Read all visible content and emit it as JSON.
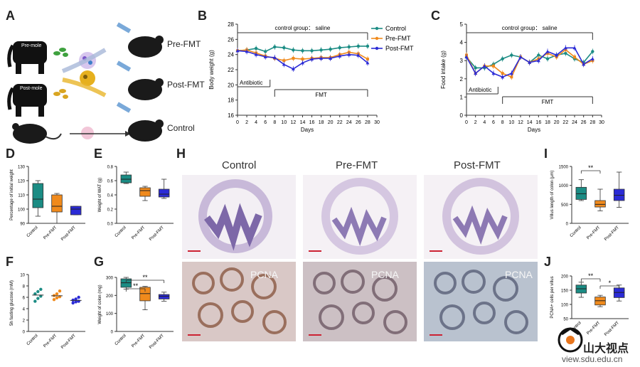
{
  "panels": {
    "A": {
      "letter": "A",
      "labels": {
        "pre_fmt": "Pre-FMT",
        "post_fmt": "Post-FMT",
        "control": "Control"
      },
      "elephant_tags": [
        "Pre-mole",
        "Post-mole"
      ]
    },
    "B": {
      "letter": "B",
      "title": "control group： saline",
      "ylabel": "Body weight (g)",
      "xlabel": "Days",
      "antibiotic": "Antibiotic",
      "fmt": "FMT",
      "yticks": [
        "16",
        "18",
        "20",
        "22",
        "24",
        "26",
        "28"
      ],
      "xticks": [
        "0",
        "2",
        "4",
        "6",
        "8",
        "10",
        "12",
        "14",
        "16",
        "18",
        "20",
        "22",
        "24",
        "26",
        "28",
        "30"
      ],
      "legend": [
        "Control",
        "Pre-FMT",
        "Post-FMT"
      ]
    },
    "C": {
      "letter": "C",
      "title": "control group： saline",
      "ylabel": "Food intake (g)",
      "xlabel": "Days",
      "antibiotic": "Antibiotic",
      "fmt": "FMT",
      "yticks": [
        "0",
        "1",
        "2",
        "3",
        "4",
        "5"
      ],
      "xticks": [
        "0",
        "2",
        "4",
        "6",
        "8",
        "10",
        "12",
        "14",
        "16",
        "18",
        "20",
        "22",
        "24",
        "26",
        "28",
        "30"
      ]
    },
    "D": {
      "letter": "D",
      "ylabel": "Percentage of initial weight",
      "yticks": [
        "90",
        "100",
        "110",
        "120",
        "130"
      ],
      "cats": [
        "Control",
        "Pre-FMT",
        "Post-FMT"
      ]
    },
    "E": {
      "letter": "E",
      "ylabel": "Weight of WAT (g)",
      "yticks": [
        "0.0",
        "0.2",
        "0.4",
        "0.6",
        "0.8"
      ],
      "cats": [
        "Control",
        "Pre-FMT",
        "Post-FMT"
      ]
    },
    "F": {
      "letter": "F",
      "ylabel": "5h fasting glucose (mM)",
      "yticks": [
        "0",
        "2",
        "4",
        "6",
        "8",
        "10"
      ],
      "cats": [
        "Control",
        "Pre-FMT",
        "Post-FMT"
      ]
    },
    "G": {
      "letter": "G",
      "ylabel": "Weight of colon (mg)",
      "yticks": [
        "0",
        "100",
        "200",
        "300"
      ],
      "cats": [
        "Control",
        "Pre-FMT",
        "Post-FMT"
      ],
      "sig": [
        "**",
        "**"
      ]
    },
    "H": {
      "letter": "H",
      "titles": [
        "Control",
        "Pre-FMT",
        "Post-FMT"
      ],
      "stain": "PCNA"
    },
    "I": {
      "letter": "I",
      "ylabel": "Villus length of colon (μm)",
      "yticks": [
        "0",
        "500",
        "1000",
        "1500"
      ],
      "cats": [
        "Control",
        "Pre-FMT",
        "Post-FMT"
      ],
      "sig": [
        "**"
      ]
    },
    "J": {
      "letter": "J",
      "ylabel": "PCNA+ cells per villus",
      "yticks": [
        "50",
        "100",
        "150",
        "200"
      ],
      "cats": [
        "Control",
        "Pre-FMT",
        "Post-FMT"
      ],
      "sig": [
        "**",
        "*"
      ]
    }
  },
  "watermark": {
    "name": "山大视点",
    "url": "view.sdu.edu.cn"
  },
  "colors": {
    "control": "#1b8c84",
    "pre": "#f08a1c",
    "post": "#2b2bd6"
  },
  "chart_data": [
    {
      "type": "line",
      "panel": "B",
      "x": [
        0,
        2,
        4,
        6,
        8,
        10,
        12,
        14,
        16,
        18,
        20,
        22,
        24,
        26,
        28
      ],
      "series": [
        {
          "name": "Control",
          "values": [
            24.5,
            24.6,
            24.8,
            24.4,
            25.0,
            24.9,
            24.6,
            24.5,
            24.5,
            24.6,
            24.7,
            24.9,
            25.0,
            25.1,
            25.1
          ]
        },
        {
          "name": "Pre-FMT",
          "values": [
            24.5,
            24.6,
            24.2,
            23.8,
            23.5,
            23.2,
            23.5,
            23.4,
            23.5,
            23.6,
            23.6,
            24.0,
            24.3,
            24.1,
            23.4
          ]
        },
        {
          "name": "Post-FMT",
          "values": [
            24.5,
            24.4,
            24.0,
            23.7,
            23.6,
            22.7,
            22.1,
            22.9,
            23.4,
            23.5,
            23.5,
            23.8,
            24.0,
            23.9,
            22.9
          ]
        }
      ],
      "ylim": [
        16,
        28
      ],
      "xlim": [
        0,
        30
      ]
    },
    {
      "type": "line",
      "panel": "C",
      "x": [
        0,
        2,
        4,
        6,
        8,
        10,
        12,
        14,
        16,
        18,
        20,
        22,
        24,
        26,
        28
      ],
      "series": [
        {
          "name": "Control",
          "values": [
            3.2,
            2.6,
            2.6,
            2.8,
            3.1,
            3.3,
            3.2,
            2.9,
            3.3,
            3.1,
            3.3,
            3.4,
            3.1,
            2.9,
            3.5
          ]
        },
        {
          "name": "Pre-FMT",
          "values": [
            3.3,
            2.3,
            2.7,
            2.7,
            2.3,
            2.1,
            3.2,
            2.9,
            3.1,
            3.4,
            3.2,
            3.6,
            3.2,
            2.8,
            3.0
          ]
        },
        {
          "name": "Post-FMT",
          "values": [
            3.2,
            2.3,
            2.7,
            2.3,
            2.1,
            2.3,
            3.2,
            2.9,
            3.0,
            3.5,
            3.3,
            3.7,
            3.7,
            2.8,
            3.1
          ]
        }
      ],
      "ylim": [
        0,
        5
      ],
      "xlim": [
        0,
        30
      ]
    },
    {
      "type": "box",
      "panel": "D",
      "categories": [
        "Control",
        "Pre-FMT",
        "Post-FMT"
      ],
      "boxes": [
        {
          "min": 95,
          "q1": 101,
          "median": 107,
          "q3": 118,
          "max": 120
        },
        {
          "min": 90,
          "q1": 98,
          "median": 102,
          "q3": 110,
          "max": 111
        },
        {
          "min": 96,
          "q1": 96,
          "median": 100,
          "q3": 102,
          "max": 102
        }
      ]
    },
    {
      "type": "box",
      "panel": "E",
      "categories": [
        "Control",
        "Pre-FMT",
        "Post-FMT"
      ],
      "boxes": [
        {
          "min": 0.56,
          "q1": 0.57,
          "median": 0.62,
          "q3": 0.68,
          "max": 0.72
        },
        {
          "min": 0.32,
          "q1": 0.38,
          "median": 0.46,
          "q3": 0.5,
          "max": 0.52
        },
        {
          "min": 0.35,
          "q1": 0.37,
          "median": 0.41,
          "q3": 0.48,
          "max": 0.62
        }
      ]
    },
    {
      "type": "scatter",
      "panel": "F",
      "categories": [
        "Control",
        "Pre-FMT",
        "Post-FMT"
      ],
      "points": [
        [
          5.3,
          5.8,
          6.2,
          6.6,
          7.0,
          7.4
        ],
        [
          5.6,
          5.9,
          6.1,
          6.3,
          6.6,
          7.1
        ],
        [
          5.0,
          5.2,
          5.3,
          5.5,
          5.7,
          6.0
        ]
      ]
    },
    {
      "type": "box",
      "panel": "G",
      "categories": [
        "Control",
        "Pre-FMT",
        "Post-FMT"
      ],
      "boxes": [
        {
          "min": 235,
          "q1": 245,
          "median": 270,
          "q3": 292,
          "max": 300
        },
        {
          "min": 120,
          "q1": 170,
          "median": 210,
          "q3": 245,
          "max": 250
        },
        {
          "min": 168,
          "q1": 180,
          "median": 195,
          "q3": 205,
          "max": 218
        }
      ]
    },
    {
      "type": "box",
      "panel": "I",
      "categories": [
        "Control",
        "Pre-FMT",
        "Post-FMT"
      ],
      "boxes": [
        {
          "min": 600,
          "q1": 630,
          "median": 780,
          "q3": 950,
          "max": 1150
        },
        {
          "min": 330,
          "q1": 430,
          "median": 500,
          "q3": 600,
          "max": 900
        },
        {
          "min": 420,
          "q1": 600,
          "median": 740,
          "q3": 900,
          "max": 1350
        }
      ]
    },
    {
      "type": "box",
      "panel": "J",
      "categories": [
        "Control",
        "Pre-FMT",
        "Post-FMT"
      ],
      "boxes": [
        {
          "min": 125,
          "q1": 140,
          "median": 155,
          "q3": 168,
          "max": 178
        },
        {
          "min": 92,
          "q1": 98,
          "median": 113,
          "q3": 126,
          "max": 132
        },
        {
          "min": 112,
          "q1": 124,
          "median": 142,
          "q3": 158,
          "max": 168
        }
      ]
    }
  ]
}
